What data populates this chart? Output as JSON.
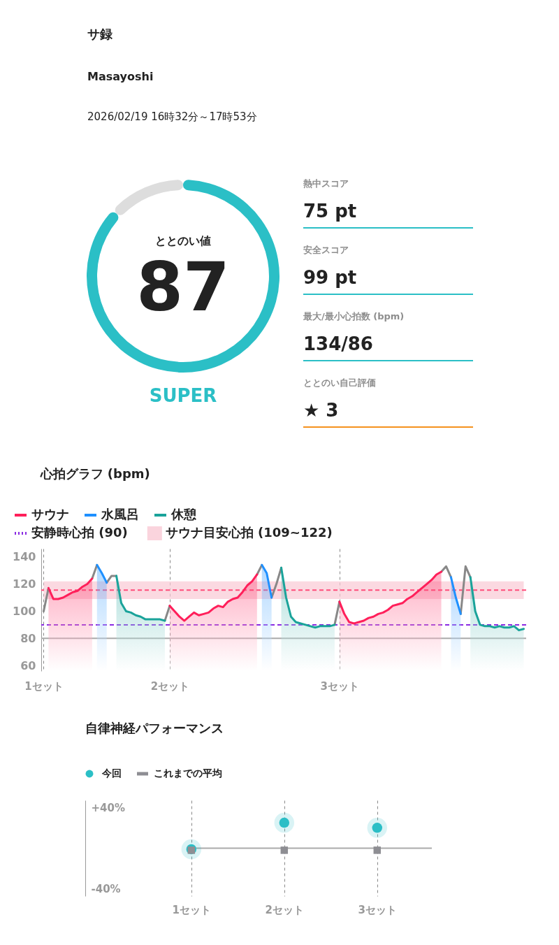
{
  "chart_data": [
    {
      "type": "other",
      "title": "サ録",
      "annotations": [
        "Masayoshi",
        "2026/02/19 16時32分～17時53分"
      ]
    },
    {
      "type": "donut",
      "title": "ととのい値",
      "categories": [
        null,
        null
      ],
      "values": [
        87,
        13
      ],
      "colors": [
        "#2bbfc6",
        "#dddddd"
      ],
      "value_labels": [
        "87",
        null
      ],
      "annotations": [
        "SUPER"
      ]
    },
    {
      "type": "other",
      "annotations": [
        "熱中スコア",
        "75 pt",
        "安全スコア",
        "99 pt",
        "最大/最小心拍数 (bpm)",
        "134/86",
        "ととのい自己評価",
        "★ 3"
      ],
      "colors": [
        "#2bbfc6",
        "#2bbfc6",
        "#2bbfc6",
        "#f5921e"
      ]
    },
    {
      "type": "line",
      "title": "心拍グラフ (bpm)",
      "categories": [
        "1セット",
        null,
        null,
        null,
        null,
        null,
        null,
        null,
        null,
        null,
        null,
        null,
        null,
        null,
        null,
        null,
        null,
        null,
        null,
        null,
        null,
        null,
        null,
        null,
        null,
        null,
        "2セット",
        null,
        null,
        null,
        null,
        null,
        null,
        null,
        null,
        null,
        null,
        null,
        null,
        null,
        null,
        null,
        null,
        null,
        null,
        null,
        null,
        null,
        null,
        null,
        null,
        null,
        null,
        null,
        null,
        null,
        null,
        null,
        null,
        null,
        null,
        "3セット",
        null,
        null,
        null,
        null,
        null,
        null,
        null,
        null,
        null,
        null,
        null,
        null,
        null,
        null,
        null,
        null,
        null,
        null,
        null,
        null,
        null,
        null,
        null,
        null,
        null,
        null,
        null,
        null,
        null,
        null,
        null,
        null,
        null,
        null,
        null,
        null,
        null,
        null
      ],
      "series": [
        {
          "type": "line",
          "color": "#888888",
          "values": [
            100,
            117,
            null,
            null,
            null,
            null,
            null,
            null,
            null,
            null,
            124,
            134,
            null,
            121,
            126,
            126,
            null,
            null,
            null,
            null,
            null,
            null,
            null,
            null,
            null,
            93,
            104,
            null,
            null,
            null,
            null,
            null,
            null,
            null,
            null,
            null,
            null,
            null,
            null,
            null,
            null,
            null,
            null,
            null,
            127,
            134,
            null,
            110,
            120,
            132,
            null,
            null,
            null,
            null,
            null,
            null,
            null,
            null,
            null,
            null,
            90,
            107,
            null,
            null,
            null,
            null,
            null,
            null,
            null,
            null,
            null,
            null,
            null,
            null,
            null,
            null,
            null,
            null,
            null,
            null,
            null,
            null,
            129,
            133,
            125,
            null,
            98,
            133,
            125,
            null,
            null,
            null,
            null,
            null,
            null,
            null,
            null,
            null,
            null,
            null
          ]
        },
        {
          "name": "サウナ",
          "type": "area",
          "color": "#ff1f5a",
          "values": [
            null,
            117,
            109,
            109,
            110,
            112,
            114,
            115,
            118,
            120,
            124,
            null,
            null,
            null,
            null,
            null,
            null,
            null,
            null,
            null,
            null,
            null,
            null,
            null,
            null,
            null,
            104,
            100,
            96,
            93,
            96,
            99,
            97,
            98,
            99,
            102,
            104,
            103,
            107,
            109,
            110,
            114,
            119,
            122,
            127,
            null,
            null,
            null,
            null,
            null,
            null,
            null,
            null,
            null,
            null,
            null,
            null,
            null,
            null,
            null,
            null,
            107,
            98,
            92,
            91,
            92,
            93,
            95,
            96,
            98,
            99,
            101,
            104,
            105,
            106,
            109,
            111,
            114,
            117,
            120,
            123,
            127,
            129,
            null,
            null,
            null,
            null,
            null,
            null,
            null,
            null,
            null,
            null,
            null,
            null,
            null,
            null,
            null,
            null,
            null
          ]
        },
        {
          "name": "水風呂",
          "type": "area",
          "color": "#1e90ff",
          "values": [
            null,
            null,
            null,
            null,
            null,
            null,
            null,
            null,
            null,
            null,
            null,
            134,
            128,
            121,
            null,
            null,
            null,
            null,
            null,
            null,
            null,
            null,
            null,
            null,
            null,
            null,
            null,
            null,
            null,
            null,
            null,
            null,
            null,
            null,
            null,
            null,
            null,
            null,
            null,
            null,
            null,
            null,
            null,
            null,
            null,
            134,
            128,
            110,
            null,
            null,
            null,
            null,
            null,
            null,
            null,
            null,
            null,
            null,
            null,
            null,
            null,
            null,
            null,
            null,
            null,
            null,
            null,
            null,
            null,
            null,
            null,
            null,
            null,
            null,
            null,
            null,
            null,
            null,
            null,
            null,
            null,
            null,
            null,
            null,
            125,
            110,
            98,
            null,
            null,
            null,
            null,
            null,
            null,
            null,
            null,
            null,
            null,
            null,
            null,
            null
          ]
        },
        {
          "name": "休憩",
          "type": "area",
          "color": "#1aa39a",
          "values": [
            null,
            null,
            null,
            null,
            null,
            null,
            null,
            null,
            null,
            null,
            null,
            null,
            null,
            null,
            null,
            126,
            106,
            100,
            99,
            97,
            96,
            94,
            94,
            94,
            94,
            93,
            null,
            null,
            null,
            null,
            null,
            null,
            null,
            null,
            null,
            null,
            null,
            null,
            null,
            null,
            null,
            null,
            null,
            null,
            null,
            null,
            null,
            null,
            null,
            132,
            110,
            96,
            92,
            91,
            90,
            89,
            88,
            89,
            89,
            89,
            90,
            null,
            null,
            null,
            null,
            null,
            null,
            null,
            null,
            null,
            null,
            null,
            null,
            null,
            null,
            null,
            null,
            null,
            null,
            null,
            null,
            null,
            null,
            null,
            null,
            null,
            null,
            null,
            125,
            100,
            90,
            89,
            89,
            88,
            89,
            88,
            88,
            89,
            86,
            87
          ]
        }
      ],
      "ylim": [
        56,
        146
      ],
      "yticks": [
        60,
        80,
        100,
        120,
        140
      ],
      "grid": "x",
      "legend": "top left",
      "ref_lines": [
        {
          "axis": "y",
          "value": 80,
          "color": "#aaaaaa",
          "line_style": "solid"
        },
        {
          "axis": "y",
          "value": 115.5,
          "color": "#ff4d7a",
          "line_style": "dashed"
        },
        {
          "axis": "y",
          "value": 90,
          "label": "安静時心拍 (90)",
          "color": "#8a2be2",
          "line_style": "dashed"
        }
      ],
      "bands": [
        {
          "axis": "y",
          "from": 109,
          "to": 122,
          "label": "サウナ目安心拍 (109~122)",
          "color": "#f9c9d4"
        }
      ]
    },
    {
      "type": "scatter",
      "title": "自律神経パフォーマンス",
      "categories": [
        "1セット",
        "2セット",
        "3セット"
      ],
      "series": [
        {
          "name": "今回",
          "marker": "circle",
          "color": "#2bbfc6",
          "values": [
            -1,
            25,
            20
          ]
        },
        {
          "name": "これまでの平均",
          "marker": "square",
          "color": "#8e8e93",
          "values": [
            -2,
            -2,
            -2
          ]
        }
      ],
      "ylim": [
        -47,
        47
      ],
      "yticks": [
        {
          "value": 40,
          "label": "+40%"
        },
        {
          "value": -40,
          "label": "-40%"
        }
      ],
      "grid": "x",
      "legend": "top left",
      "ref_lines": [
        {
          "axis": "y",
          "value": 0,
          "color": "#aaaaaa",
          "line_style": "solid"
        }
      ]
    }
  ]
}
